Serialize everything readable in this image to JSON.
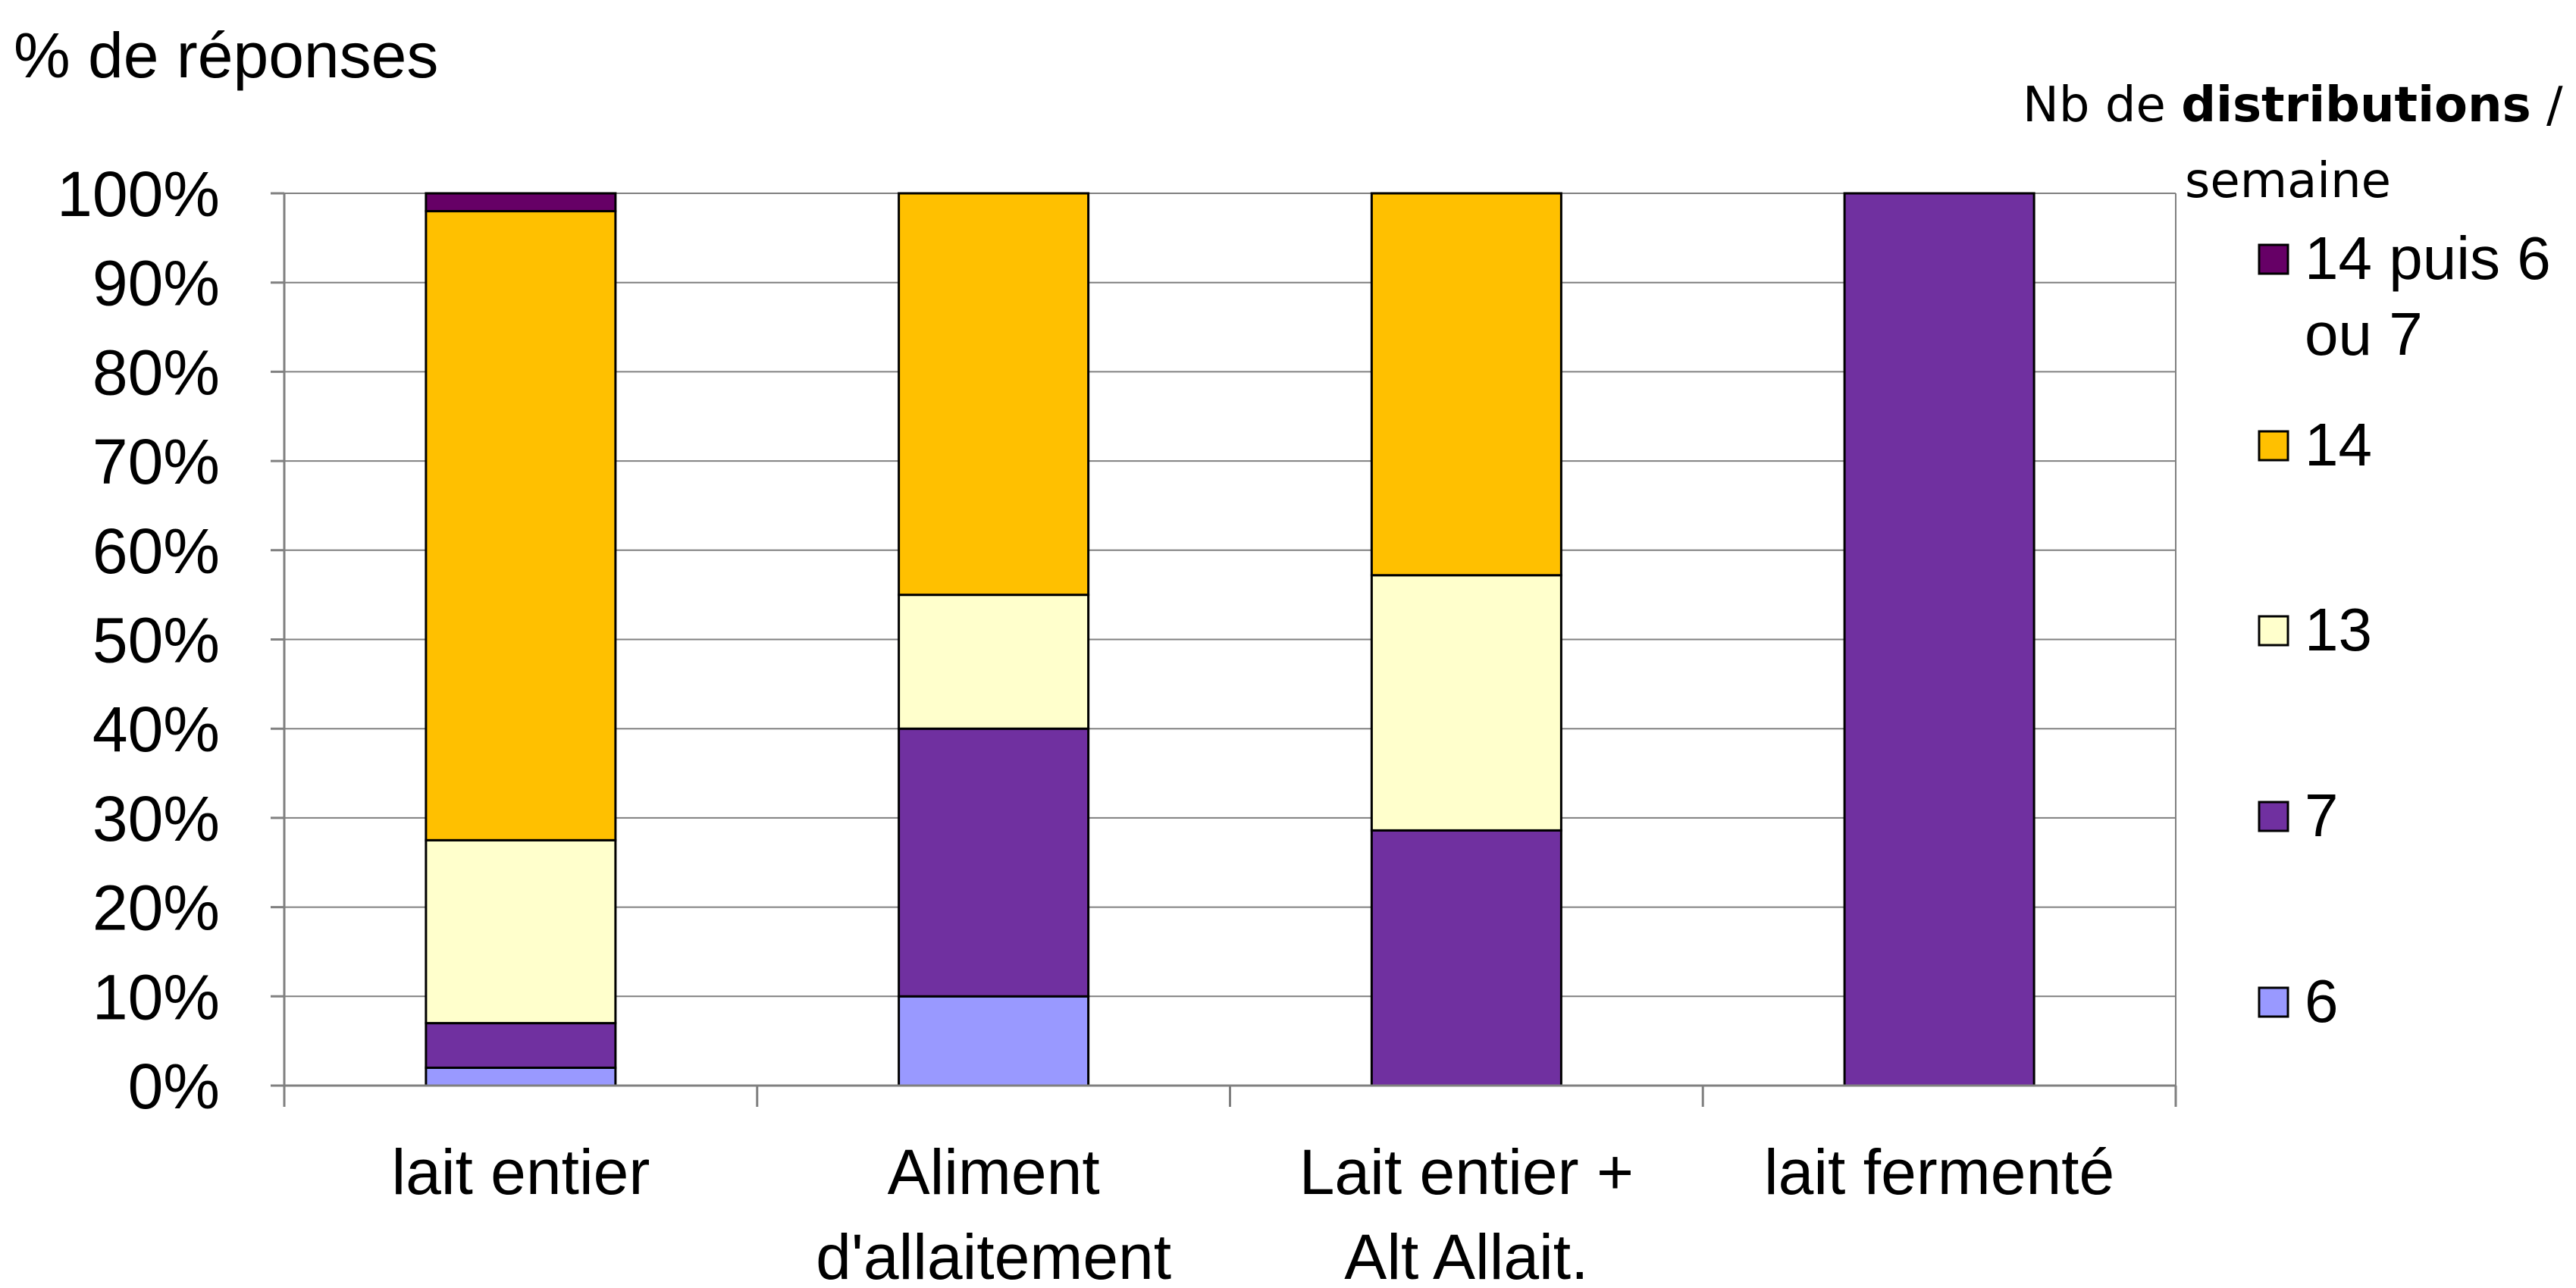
{
  "chart_data": {
    "type": "bar",
    "stacked": true,
    "title": "",
    "ylabel": "% de réponses",
    "xlabel": "",
    "ylim": [
      0,
      100
    ],
    "yticks": [
      "0%",
      "10%",
      "20%",
      "30%",
      "40%",
      "50%",
      "60%",
      "70%",
      "80%",
      "90%",
      "100%"
    ],
    "grid": true,
    "legend_position": "right",
    "legend_title": {
      "prefix": "Nb de ",
      "bold": "distributions",
      "suffix": " /",
      "line2": "semaine"
    },
    "categories": [
      [
        "lait entier"
      ],
      [
        "Aliment",
        "d'allaitement"
      ],
      [
        "Lait entier +",
        "Alt Allait."
      ],
      [
        "lait fermenté"
      ]
    ],
    "series": [
      {
        "name": "6",
        "color": "#9999ff",
        "values": [
          2,
          10,
          0,
          0
        ]
      },
      {
        "name": "7",
        "color": "#7030a0",
        "values": [
          5,
          30,
          28.6,
          100
        ]
      },
      {
        "name": "13",
        "color": "#ffffcc",
        "values": [
          20.5,
          15,
          28.6,
          0
        ]
      },
      {
        "name": "14",
        "color": "#ffc000",
        "values": [
          70.5,
          45,
          42.8,
          0
        ]
      },
      {
        "name": "14 puis 6 ou 7",
        "color": "#660066",
        "values": [
          2,
          0,
          0,
          0
        ]
      }
    ],
    "legend_order": [
      "14 puis 6 ou 7",
      "14",
      "13",
      "7",
      "6"
    ]
  }
}
